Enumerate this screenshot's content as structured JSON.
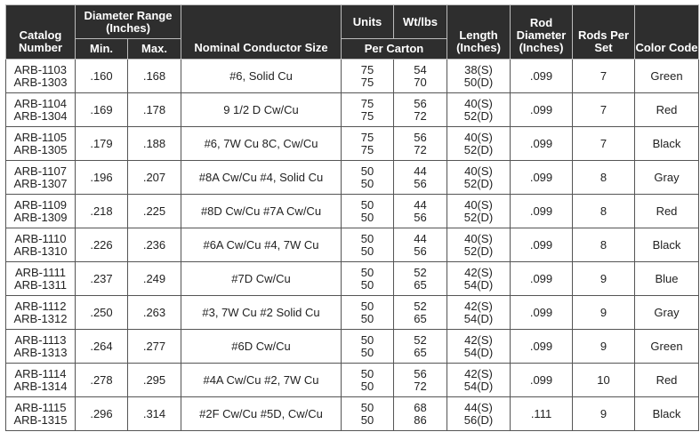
{
  "headers": {
    "catalog": "Catalog Number",
    "diameter_range": "Diameter Range (Inches)",
    "min": "Min.",
    "max": "Max.",
    "conductor": "Nominal Conductor Size",
    "units": "Units",
    "wt": "Wt/lbs",
    "per_carton": "Per Carton",
    "length": "Length (Inches)",
    "rod_diameter": "Rod Diameter (Inches)",
    "rods": "Rods Per Set",
    "color": "Color Code"
  },
  "rows": [
    {
      "cat1": "ARB-1103",
      "cat2": "ARB-1303",
      "min": ".160",
      "max": ".168",
      "cond": "#6, Solid Cu",
      "u1": "75",
      "u2": "75",
      "w1": "54",
      "w2": "70",
      "l1": "38(S)",
      "l2": "50(D)",
      "rod": ".099",
      "rods": "7",
      "color": "Green"
    },
    {
      "cat1": "ARB-1104",
      "cat2": "ARB-1304",
      "min": ".169",
      "max": ".178",
      "cond": "9 1/2 D Cw/Cu",
      "u1": "75",
      "u2": "75",
      "w1": "56",
      "w2": "72",
      "l1": "40(S)",
      "l2": "52(D)",
      "rod": ".099",
      "rods": "7",
      "color": "Red"
    },
    {
      "cat1": "ARB-1105",
      "cat2": "ARB-1305",
      "min": ".179",
      "max": ".188",
      "cond": "#6, 7W Cu 8C, Cw/Cu",
      "u1": "75",
      "u2": "75",
      "w1": "56",
      "w2": "72",
      "l1": "40(S)",
      "l2": "52(D)",
      "rod": ".099",
      "rods": "7",
      "color": "Black"
    },
    {
      "cat1": "ARB-1107",
      "cat2": "ARB-1307",
      "min": ".196",
      "max": ".207",
      "cond": "#8A Cw/Cu #4, Solid Cu",
      "u1": "50",
      "u2": "50",
      "w1": "44",
      "w2": "56",
      "l1": "40(S)",
      "l2": "52(D)",
      "rod": ".099",
      "rods": "8",
      "color": "Gray"
    },
    {
      "cat1": "ARB-1109",
      "cat2": "ARB-1309",
      "min": ".218",
      "max": ".225",
      "cond": "#8D Cw/Cu #7A Cw/Cu",
      "u1": "50",
      "u2": "50",
      "w1": "44",
      "w2": "56",
      "l1": "40(S)",
      "l2": "52(D)",
      "rod": ".099",
      "rods": "8",
      "color": "Red"
    },
    {
      "cat1": "ARB-1110",
      "cat2": "ARB-1310",
      "min": ".226",
      "max": ".236",
      "cond": "#6A Cw/Cu #4, 7W Cu",
      "u1": "50",
      "u2": "50",
      "w1": "44",
      "w2": "56",
      "l1": "40(S)",
      "l2": "52(D)",
      "rod": ".099",
      "rods": "8",
      "color": "Black"
    },
    {
      "cat1": "ARB-1111",
      "cat2": "ARB-1311",
      "min": ".237",
      "max": ".249",
      "cond": "#7D Cw/Cu",
      "u1": "50",
      "u2": "50",
      "w1": "52",
      "w2": "65",
      "l1": "42(S)",
      "l2": "54(D)",
      "rod": ".099",
      "rods": "9",
      "color": "Blue"
    },
    {
      "cat1": "ARB-1112",
      "cat2": "ARB-1312",
      "min": ".250",
      "max": ".263",
      "cond": "#3, 7W Cu #2 Solid Cu",
      "u1": "50",
      "u2": "50",
      "w1": "52",
      "w2": "65",
      "l1": "42(S)",
      "l2": "54(D)",
      "rod": ".099",
      "rods": "9",
      "color": "Gray"
    },
    {
      "cat1": "ARB-1113",
      "cat2": "ARB-1313",
      "min": ".264",
      "max": ".277",
      "cond": "#6D Cw/Cu",
      "u1": "50",
      "u2": "50",
      "w1": "52",
      "w2": "65",
      "l1": "42(S)",
      "l2": "54(D)",
      "rod": ".099",
      "rods": "9",
      "color": "Green"
    },
    {
      "cat1": "ARB-1114",
      "cat2": "ARB-1314",
      "min": ".278",
      "max": ".295",
      "cond": "#4A Cw/Cu #2, 7W Cu",
      "u1": "50",
      "u2": "50",
      "w1": "56",
      "w2": "72",
      "l1": "42(S)",
      "l2": "54(D)",
      "rod": ".099",
      "rods": "10",
      "color": "Red"
    },
    {
      "cat1": "ARB-1115",
      "cat2": "ARB-1315",
      "min": ".296",
      "max": ".314",
      "cond": "#2F Cw/Cu #5D, Cw/Cu",
      "u1": "50",
      "u2": "50",
      "w1": "68",
      "w2": "86",
      "l1": "44(S)",
      "l2": "56(D)",
      "rod": ".111",
      "rods": "9",
      "color": "Black"
    }
  ]
}
